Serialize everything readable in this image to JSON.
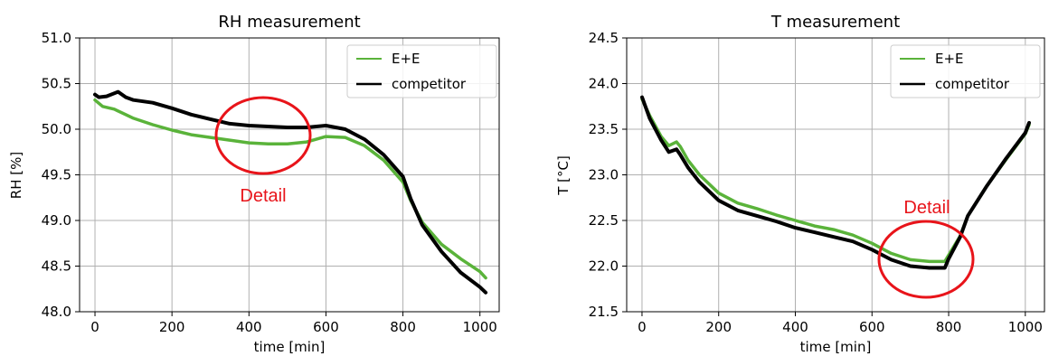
{
  "colors": {
    "ee": "#5ab33a",
    "competitor": "#000000",
    "annotation": "#e8141a",
    "grid": "#b0b0b0"
  },
  "chart_data": [
    {
      "type": "line",
      "title": "RH measurement",
      "xlabel": "time [min]",
      "ylabel": "RH [%]",
      "xlim": [
        -40,
        1050
      ],
      "ylim": [
        48.0,
        51.0
      ],
      "xticks": [
        0,
        200,
        400,
        600,
        800,
        1000
      ],
      "xtick_labels": [
        "0",
        "200",
        "400",
        "600",
        "800",
        "1000"
      ],
      "yticks": [
        48.0,
        48.5,
        49.0,
        49.5,
        50.0,
        50.5,
        51.0
      ],
      "ytick_labels": [
        "48.0",
        "48.5",
        "49.0",
        "49.5",
        "50.0",
        "50.5",
        "51.0"
      ],
      "grid": true,
      "legend_position": "top-right",
      "annotation": {
        "text": "Detail",
        "ellipse_center": [
          430,
          49.9
        ]
      },
      "series": [
        {
          "name": "E+E",
          "color": "#5ab33a",
          "x": [
            0,
            20,
            50,
            100,
            150,
            200,
            250,
            300,
            350,
            400,
            450,
            500,
            550,
            600,
            650,
            700,
            750,
            800,
            820,
            850,
            900,
            950,
            1000,
            1015
          ],
          "y": [
            50.32,
            50.25,
            50.22,
            50.12,
            50.05,
            49.99,
            49.94,
            49.91,
            49.88,
            49.85,
            49.84,
            49.84,
            49.86,
            49.92,
            49.91,
            49.82,
            49.66,
            49.42,
            49.22,
            48.98,
            48.74,
            48.58,
            48.44,
            48.37
          ]
        },
        {
          "name": "competitor",
          "color": "#000000",
          "x": [
            0,
            10,
            30,
            60,
            80,
            100,
            150,
            200,
            250,
            300,
            350,
            400,
            450,
            500,
            550,
            600,
            650,
            700,
            750,
            800,
            820,
            850,
            900,
            950,
            1000,
            1015
          ],
          "y": [
            50.38,
            50.35,
            50.36,
            50.41,
            50.35,
            50.32,
            50.29,
            50.23,
            50.16,
            50.11,
            50.06,
            50.04,
            50.03,
            50.02,
            50.02,
            50.04,
            50.0,
            49.89,
            49.72,
            49.48,
            49.24,
            48.95,
            48.66,
            48.43,
            48.27,
            48.21
          ]
        }
      ]
    },
    {
      "type": "line",
      "title": "T measurement",
      "xlabel": "time [min]",
      "ylabel": "T [°C]",
      "xlim": [
        -40,
        1050
      ],
      "ylim": [
        21.5,
        24.5
      ],
      "xticks": [
        0,
        200,
        400,
        600,
        800,
        1000
      ],
      "xtick_labels": [
        "0",
        "200",
        "400",
        "600",
        "800",
        "1000"
      ],
      "yticks": [
        21.5,
        22.0,
        22.5,
        23.0,
        23.5,
        24.0,
        24.5
      ],
      "ytick_labels": [
        "21.5",
        "22.0",
        "22.5",
        "23.0",
        "23.5",
        "24.0",
        "24.5"
      ],
      "grid": true,
      "legend_position": "top-right",
      "annotation": {
        "text": "Detail",
        "ellipse_center": [
          740,
          22.05
        ]
      },
      "series": [
        {
          "name": "E+E",
          "color": "#5ab33a",
          "x": [
            0,
            20,
            50,
            70,
            90,
            100,
            120,
            150,
            200,
            250,
            300,
            350,
            400,
            450,
            500,
            550,
            600,
            650,
            700,
            750,
            790,
            800,
            830,
            850,
            900,
            950,
            1000,
            1010
          ],
          "y": [
            23.83,
            23.65,
            23.42,
            23.32,
            23.36,
            23.31,
            23.16,
            23.0,
            22.8,
            22.69,
            22.63,
            22.56,
            22.5,
            22.44,
            22.4,
            22.34,
            22.25,
            22.14,
            22.07,
            22.05,
            22.05,
            22.12,
            22.33,
            22.55,
            22.88,
            23.17,
            23.45,
            23.55
          ]
        },
        {
          "name": "competitor",
          "color": "#000000",
          "x": [
            0,
            20,
            50,
            70,
            90,
            100,
            120,
            150,
            200,
            250,
            300,
            350,
            400,
            450,
            500,
            550,
            600,
            650,
            700,
            750,
            790,
            800,
            830,
            850,
            900,
            950,
            1000,
            1010
          ],
          "y": [
            23.85,
            23.62,
            23.38,
            23.25,
            23.28,
            23.22,
            23.08,
            22.92,
            22.72,
            22.61,
            22.55,
            22.49,
            22.42,
            22.37,
            22.32,
            22.27,
            22.18,
            22.07,
            22.0,
            21.98,
            21.98,
            22.08,
            22.32,
            22.55,
            22.88,
            23.18,
            23.46,
            23.57
          ]
        }
      ]
    }
  ]
}
